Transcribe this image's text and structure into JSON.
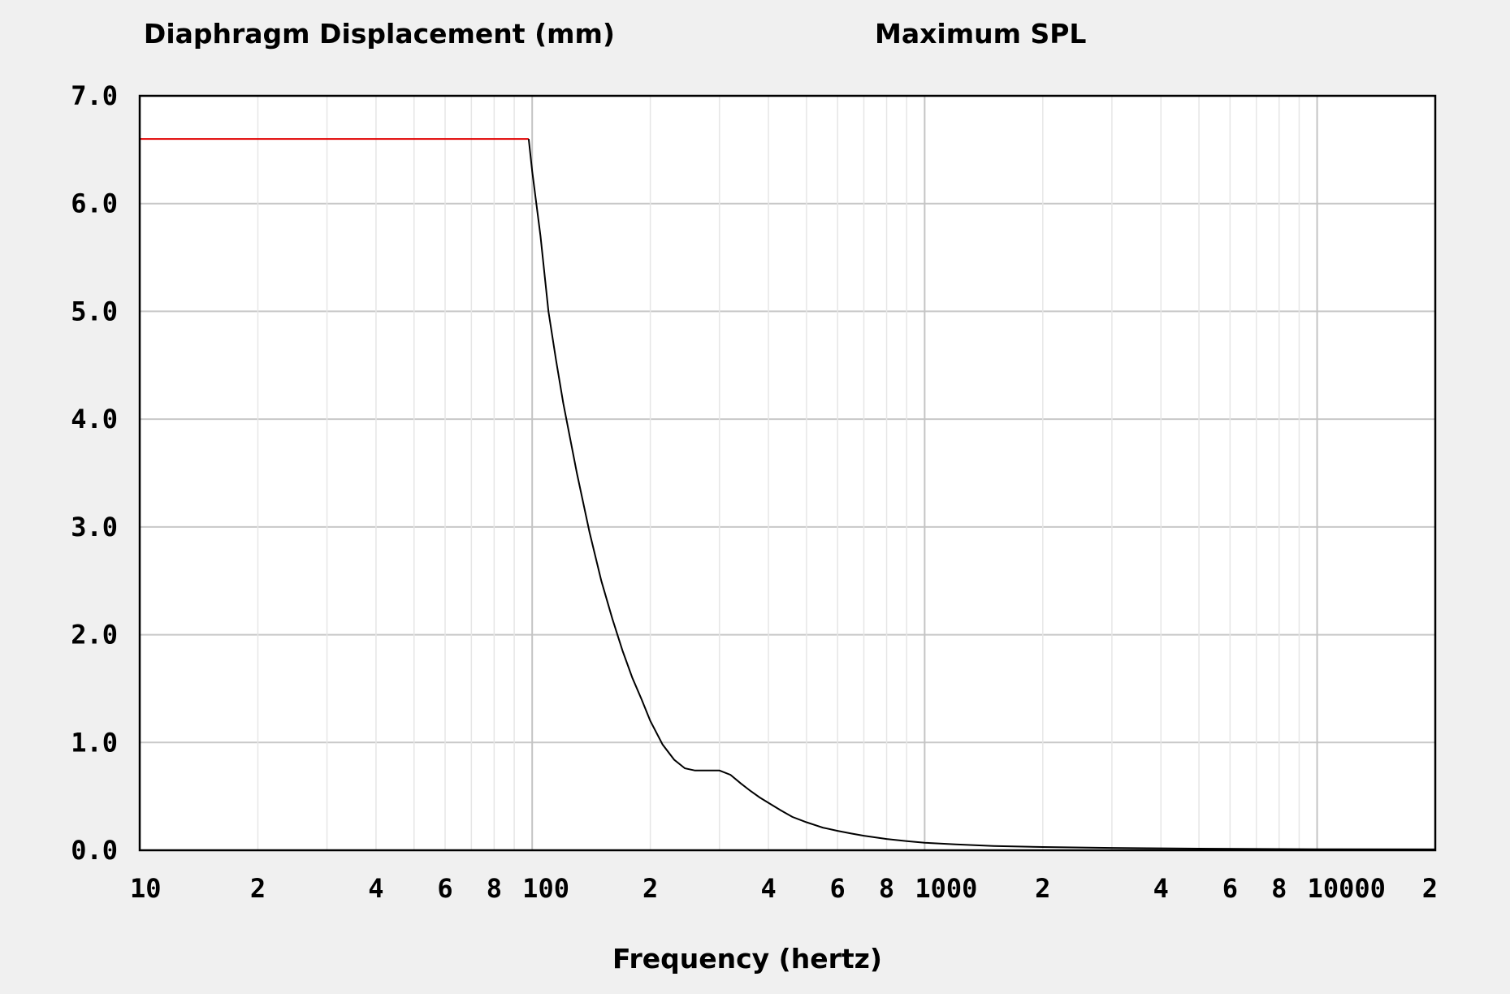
{
  "chart_data": {
    "type": "line",
    "title": "Diaphragm Displacement (mm)",
    "subtitle": "Maximum SPL",
    "xlabel": "Frequency (hertz)",
    "ylabel": "",
    "xscale": "log",
    "xlim": [
      10,
      20000
    ],
    "ylim": [
      0,
      7
    ],
    "grid": true,
    "legend": "none",
    "x_tick_labels": [
      {
        "value": 10,
        "label": "10"
      },
      {
        "value": 20,
        "label": "2"
      },
      {
        "value": 40,
        "label": "4"
      },
      {
        "value": 60,
        "label": "6"
      },
      {
        "value": 80,
        "label": "8"
      },
      {
        "value": 100,
        "label": "100"
      },
      {
        "value": 200,
        "label": "2"
      },
      {
        "value": 400,
        "label": "4"
      },
      {
        "value": 600,
        "label": "6"
      },
      {
        "value": 800,
        "label": "8"
      },
      {
        "value": 1000,
        "label": "1000"
      },
      {
        "value": 2000,
        "label": "2"
      },
      {
        "value": 4000,
        "label": "4"
      },
      {
        "value": 6000,
        "label": "6"
      },
      {
        "value": 8000,
        "label": "8"
      },
      {
        "value": 10000,
        "label": "10000"
      },
      {
        "value": 20000,
        "label": "2"
      }
    ],
    "y_tick_labels": [
      {
        "value": 0,
        "label": "0.0"
      },
      {
        "value": 1,
        "label": "1.0"
      },
      {
        "value": 2,
        "label": "2.0"
      },
      {
        "value": 3,
        "label": "3.0"
      },
      {
        "value": 4,
        "label": "4.0"
      },
      {
        "value": 5,
        "label": "5.0"
      },
      {
        "value": 6,
        "label": "6.0"
      },
      {
        "value": 7,
        "label": "7.0"
      }
    ],
    "series": [
      {
        "color": "#e00000",
        "x": [
          10,
          98
        ],
        "y": [
          6.6,
          6.6
        ]
      },
      {
        "color": "#000000",
        "x": [
          98,
          100,
          105,
          110,
          115,
          120,
          130,
          140,
          150,
          160,
          170,
          180,
          190,
          200,
          215,
          230,
          245,
          260,
          280,
          300,
          320,
          340,
          360,
          380,
          400,
          430,
          460,
          500,
          550,
          600,
          650,
          700,
          800,
          900,
          1000,
          1200,
          1500,
          2000,
          3000,
          5000,
          10000,
          20000
        ],
        "y": [
          6.6,
          6.3,
          5.7,
          5.0,
          4.55,
          4.15,
          3.5,
          2.95,
          2.5,
          2.15,
          1.85,
          1.6,
          1.4,
          1.2,
          0.98,
          0.84,
          0.76,
          0.74,
          0.74,
          0.74,
          0.7,
          0.62,
          0.55,
          0.49,
          0.44,
          0.37,
          0.31,
          0.26,
          0.21,
          0.18,
          0.155,
          0.135,
          0.105,
          0.085,
          0.07,
          0.055,
          0.04,
          0.03,
          0.022,
          0.015,
          0.01,
          0.008
        ]
      }
    ]
  }
}
